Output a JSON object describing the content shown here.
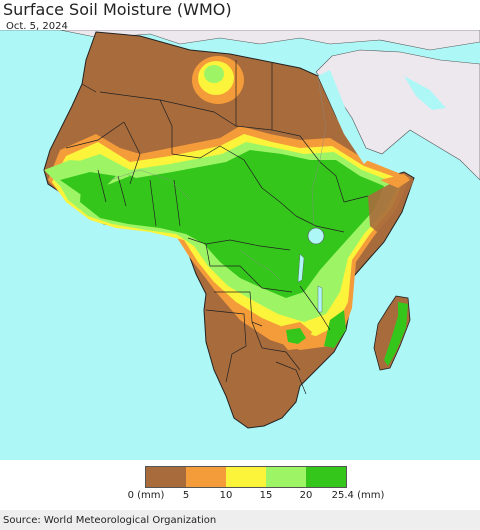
{
  "header": {
    "title": "Surface Soil Moisture (WMO)",
    "date": "Oct. 5, 2024"
  },
  "map": {
    "region": "Africa",
    "ocean_color": "#aef7f7",
    "neighbor_land_color": "#ede8ee",
    "border_color": "#222222"
  },
  "legend": {
    "colors": [
      "#a86b3c",
      "#f59c3a",
      "#fbf43a",
      "#9df566",
      "#35c61c"
    ],
    "ticks": [
      "0 (mm)",
      "5",
      "10",
      "15",
      "20",
      "25.4 (mm)"
    ]
  },
  "footer": {
    "source": "Source: World Meteorological Organization"
  }
}
